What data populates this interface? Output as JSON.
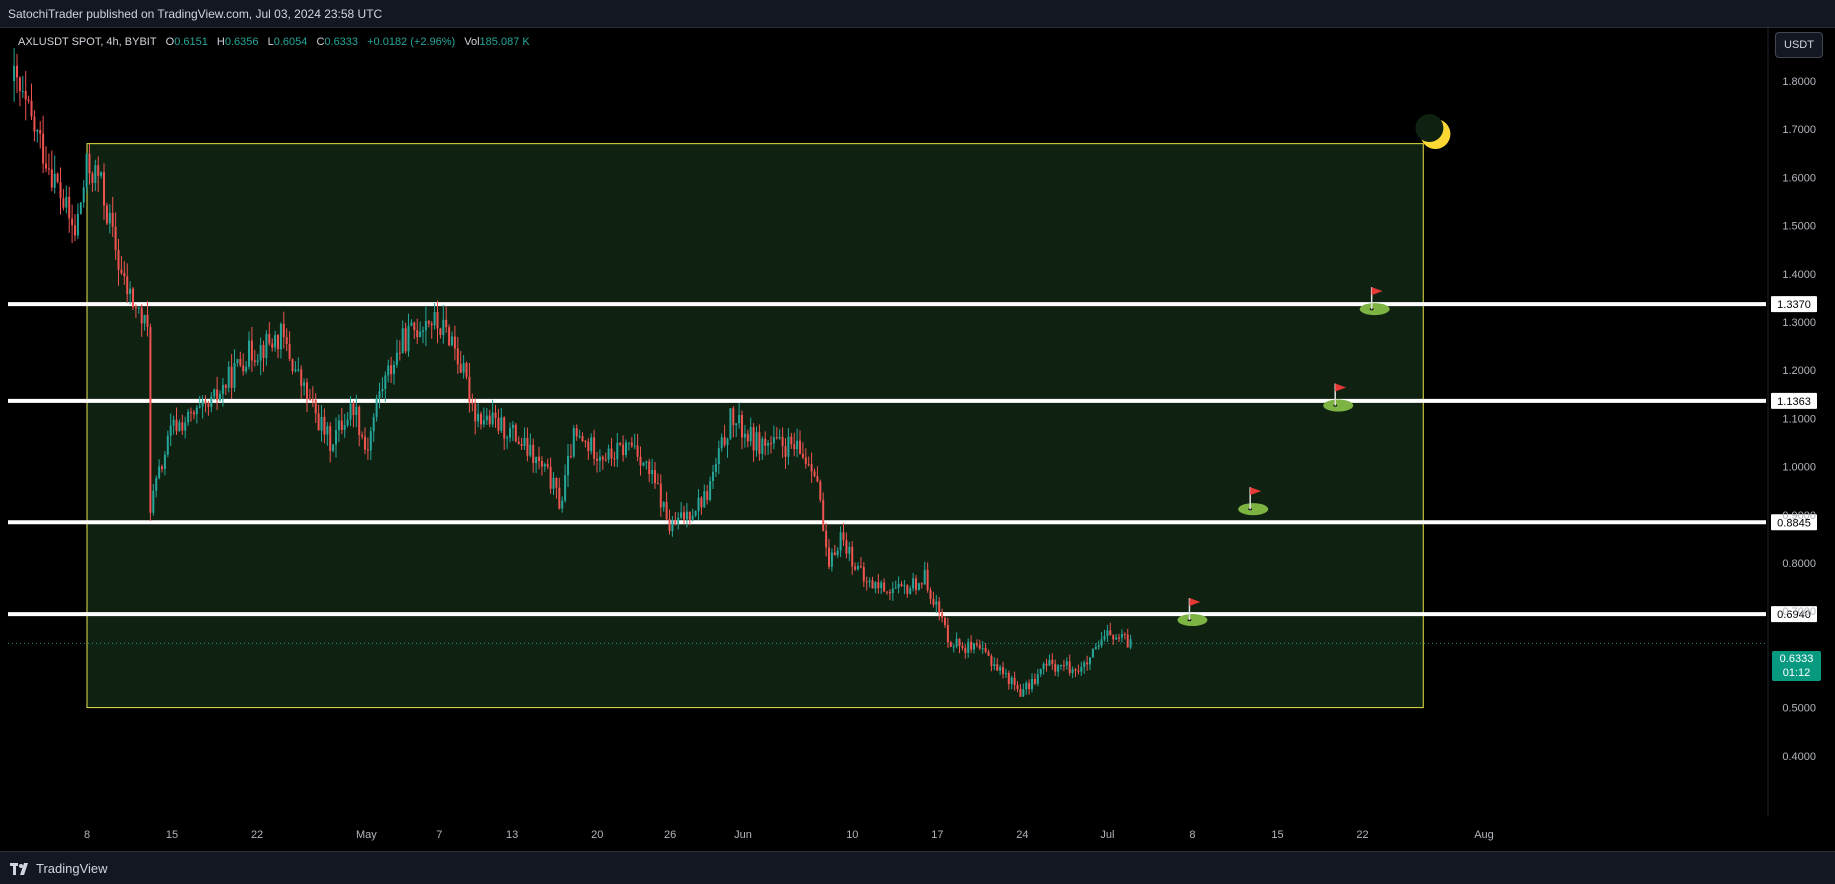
{
  "header": {
    "published": "SatochiTrader published on TradingView.com, Jul 03, 2024 23:58 UTC"
  },
  "legend": {
    "symbol": "AXLUSDT SPOT, 4h, BYBIT",
    "open_label": "O",
    "open": "0.6151",
    "high_label": "H",
    "high": "0.6356",
    "low_label": "L",
    "low": "0.6054",
    "close_label": "C",
    "close": "0.6333",
    "change": "+0.0182 (+2.96%)",
    "vol_label": "Vol",
    "vol": "185.087 K"
  },
  "currency_button": "USDT",
  "last_price": {
    "price": "0.6333",
    "countdown": "01:12"
  },
  "footer": {
    "brand": "TradingView"
  },
  "colors": {
    "up": "#26a69a",
    "down": "#ef5350",
    "zone_fill": "#0f2212",
    "zone_border": "#e8e34a",
    "level_line": "#ffffff"
  },
  "chart_data": {
    "type": "candlestick",
    "interval": "4h",
    "y_axis": {
      "ylim": [
        0.33,
        1.88
      ],
      "ticks": [
        "1.8000",
        "1.7000",
        "1.6000",
        "1.5000",
        "1.4000",
        "1.3000",
        "1.2000",
        "1.1000",
        "1.0000",
        "0.9000",
        "0.8000",
        "0.7000",
        "0.6000",
        "0.5000",
        "0.4000"
      ]
    },
    "x_axis": {
      "ticks": [
        "8",
        "15",
        "22",
        "May",
        "7",
        "13",
        "20",
        "26",
        "Jun",
        "10",
        "17",
        "24",
        "Jul",
        "8",
        "15",
        "22",
        "Aug"
      ],
      "tick_dates": [
        "2024-04-08",
        "2024-04-15",
        "2024-04-22",
        "2024-05-01",
        "2024-05-07",
        "2024-05-13",
        "2024-05-20",
        "2024-05-26",
        "2024-06-01",
        "2024-06-10",
        "2024-06-17",
        "2024-06-24",
        "2024-07-01",
        "2024-07-08",
        "2024-07-15",
        "2024-07-22",
        "2024-08-01"
      ]
    },
    "horizontal_levels": [
      {
        "price": 1.337,
        "label": "1.3370"
      },
      {
        "price": 1.1363,
        "label": "1.1363"
      },
      {
        "price": 0.8845,
        "label": "0.8845"
      },
      {
        "price": 0.694,
        "label": "0.6940"
      }
    ],
    "last_price_line": 0.6333,
    "range_box": {
      "start": "2024-04-08",
      "end": "2024-07-27",
      "top": 1.67,
      "bottom": 0.5
    },
    "flag_markers": [
      {
        "date": "2024-07-08",
        "price": 0.69
      },
      {
        "date": "2024-07-13",
        "price": 0.92
      },
      {
        "date": "2024-07-20",
        "price": 1.135
      },
      {
        "date": "2024-07-23",
        "price": 1.335
      }
    ],
    "moon_marker": {
      "date": "2024-07-28",
      "price": 1.69
    },
    "price_path": [
      {
        "date": "2024-04-02",
        "price": 1.8
      },
      {
        "date": "2024-04-05",
        "price": 1.62
      },
      {
        "date": "2024-04-07",
        "price": 1.48
      },
      {
        "date": "2024-04-08",
        "price": 1.62
      },
      {
        "date": "2024-04-09",
        "price": 1.6
      },
      {
        "date": "2024-04-11",
        "price": 1.38
      },
      {
        "date": "2024-04-13",
        "price": 1.28
      },
      {
        "date": "2024-04-13",
        "price": 0.9
      },
      {
        "date": "2024-04-15",
        "price": 1.08
      },
      {
        "date": "2024-04-18",
        "price": 1.12
      },
      {
        "date": "2024-04-21",
        "price": 1.23
      },
      {
        "date": "2024-04-24",
        "price": 1.27
      },
      {
        "date": "2024-04-26",
        "price": 1.15
      },
      {
        "date": "2024-04-28",
        "price": 1.05
      },
      {
        "date": "2024-04-30",
        "price": 1.13
      },
      {
        "date": "2024-05-01",
        "price": 1.03
      },
      {
        "date": "2024-05-02",
        "price": 1.15
      },
      {
        "date": "2024-05-04",
        "price": 1.26
      },
      {
        "date": "2024-05-06",
        "price": 1.31
      },
      {
        "date": "2024-05-08",
        "price": 1.27
      },
      {
        "date": "2024-05-10",
        "price": 1.11
      },
      {
        "date": "2024-05-13",
        "price": 1.07
      },
      {
        "date": "2024-05-16",
        "price": 0.98
      },
      {
        "date": "2024-05-17",
        "price": 0.92
      },
      {
        "date": "2024-05-18",
        "price": 1.06
      },
      {
        "date": "2024-05-21",
        "price": 1.02
      },
      {
        "date": "2024-05-23",
        "price": 1.05
      },
      {
        "date": "2024-05-25",
        "price": 0.95
      },
      {
        "date": "2024-05-26",
        "price": 0.87
      },
      {
        "date": "2024-05-29",
        "price": 0.94
      },
      {
        "date": "2024-05-31",
        "price": 1.1
      },
      {
        "date": "2024-06-02",
        "price": 1.05
      },
      {
        "date": "2024-06-05",
        "price": 1.04
      },
      {
        "date": "2024-06-07",
        "price": 1.0
      },
      {
        "date": "2024-06-08",
        "price": 0.78
      },
      {
        "date": "2024-06-09",
        "price": 0.86
      },
      {
        "date": "2024-06-11",
        "price": 0.76
      },
      {
        "date": "2024-06-14",
        "price": 0.74
      },
      {
        "date": "2024-06-16",
        "price": 0.77
      },
      {
        "date": "2024-06-18",
        "price": 0.64
      },
      {
        "date": "2024-06-21",
        "price": 0.61
      },
      {
        "date": "2024-06-24",
        "price": 0.53
      },
      {
        "date": "2024-06-26",
        "price": 0.59
      },
      {
        "date": "2024-06-29",
        "price": 0.58
      },
      {
        "date": "2024-07-01",
        "price": 0.65
      },
      {
        "date": "2024-07-03",
        "price": 0.6333
      }
    ]
  }
}
